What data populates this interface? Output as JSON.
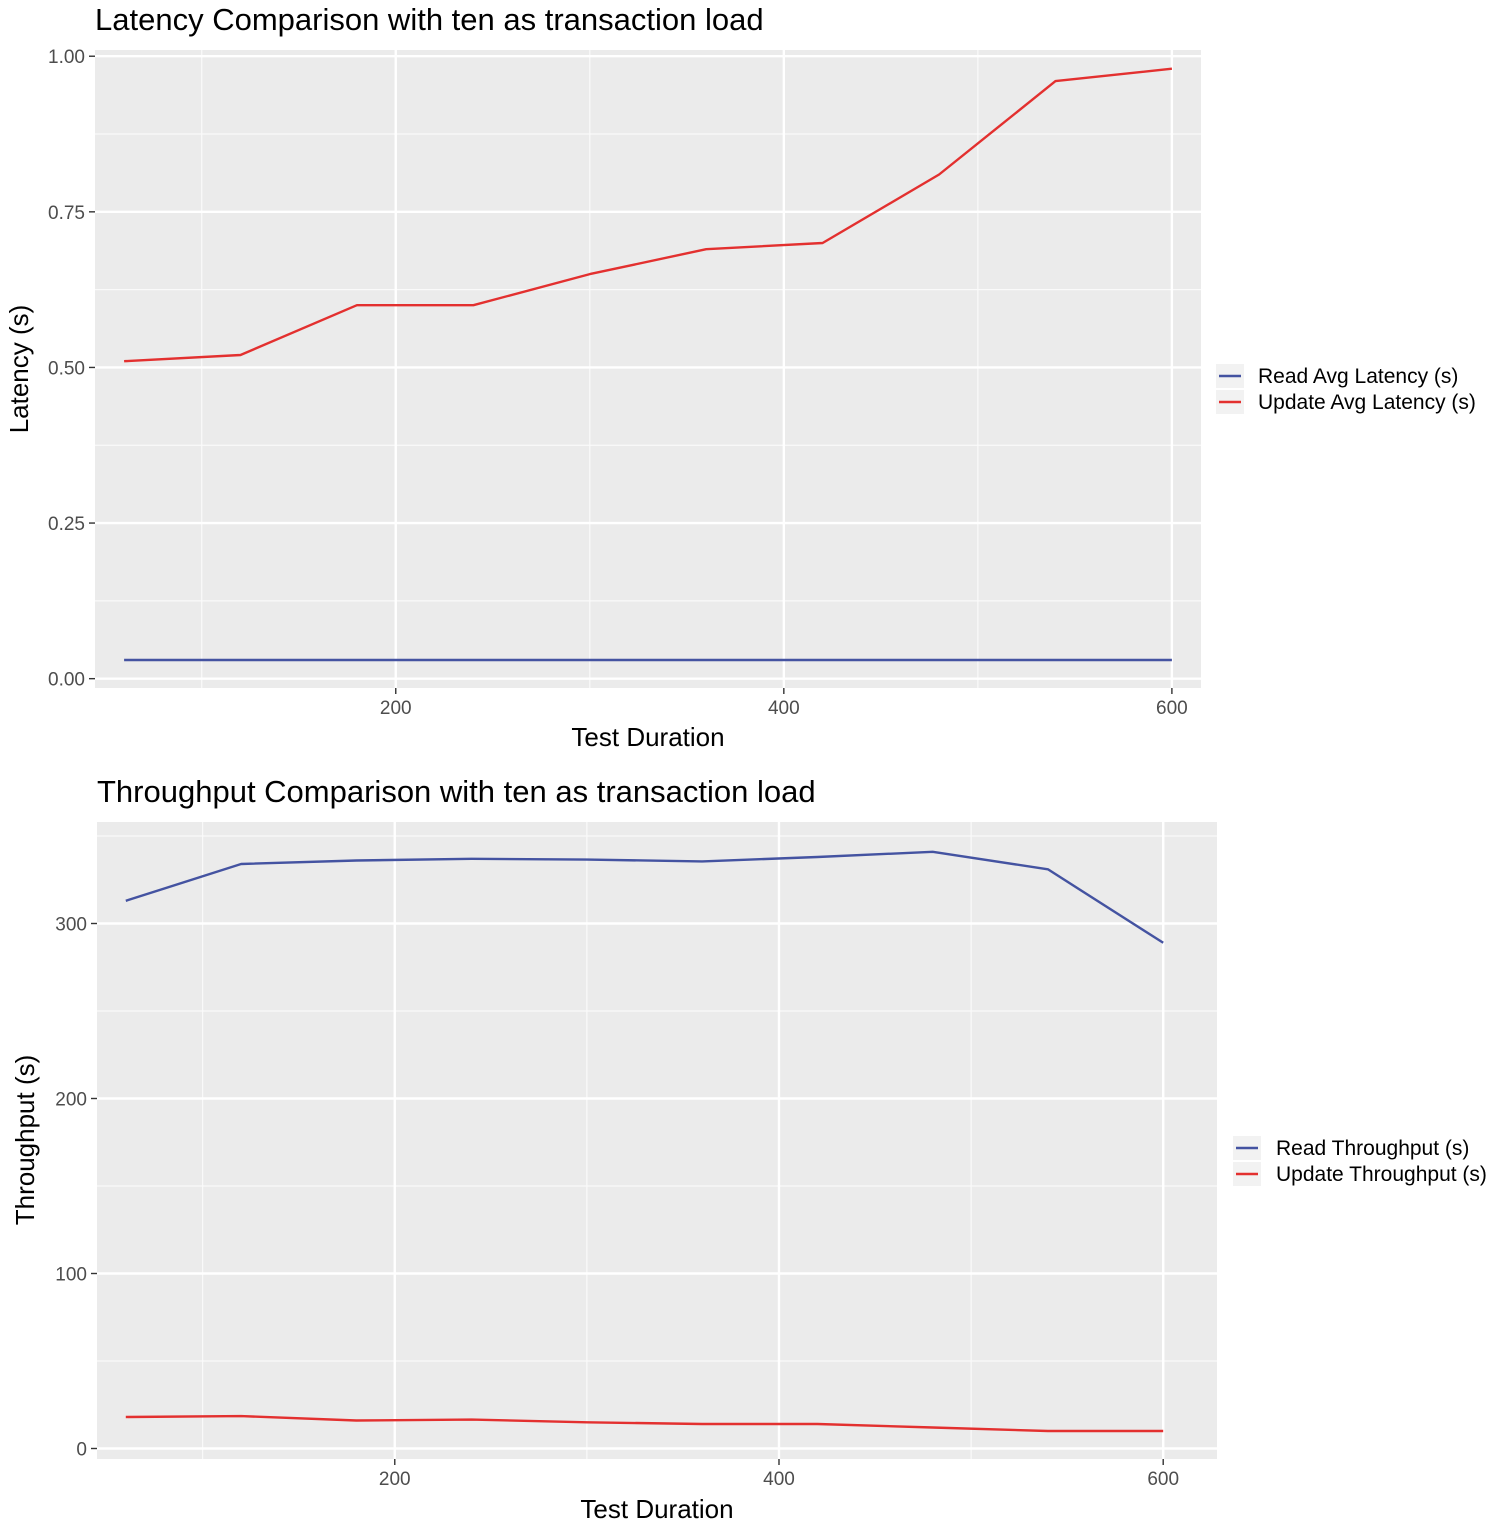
{
  "chart_data": [
    {
      "type": "line",
      "title": "Latency Comparison with ten as transaction load",
      "xlabel": "Test Duration",
      "ylabel": "Latency (s)",
      "xlim": [
        45,
        615
      ],
      "ylim": [
        -0.015,
        1.01
      ],
      "x_ticks": [
        200,
        400,
        600
      ],
      "x_tick_labels": [
        "200",
        "400",
        "600"
      ],
      "x_minor_ticks": [
        100,
        300,
        500
      ],
      "y_ticks": [
        0,
        0.25,
        0.5,
        0.75,
        1.0
      ],
      "y_tick_labels": [
        "0.00",
        "0.25",
        "0.50",
        "0.75",
        "1.00"
      ],
      "y_minor_ticks": [
        0.125,
        0.375,
        0.625,
        0.875
      ],
      "grid": true,
      "legend": "right",
      "x": [
        60,
        120,
        180,
        240,
        300,
        360,
        420,
        480,
        540,
        600
      ],
      "series": [
        {
          "name": "Read Avg Latency (s)",
          "color": "#4453a1",
          "values": [
            0.03,
            0.03,
            0.03,
            0.03,
            0.03,
            0.03,
            0.03,
            0.03,
            0.03,
            0.03
          ]
        },
        {
          "name": "Update Avg Latency (s)",
          "color": "#e3302f",
          "values": [
            0.51,
            0.52,
            0.6,
            0.6,
            0.65,
            0.69,
            0.7,
            0.81,
            0.96,
            0.98
          ]
        }
      ]
    },
    {
      "type": "line",
      "title": "Throughput Comparison with ten as transaction load",
      "xlabel": "Test Duration",
      "ylabel": "Throughput (s)",
      "xlim": [
        45,
        628
      ],
      "ylim": [
        -6,
        358
      ],
      "x_ticks": [
        200,
        400,
        600
      ],
      "x_tick_labels": [
        "200",
        "400",
        "600"
      ],
      "x_minor_ticks": [
        100,
        300,
        500
      ],
      "y_ticks": [
        0,
        100,
        200,
        300
      ],
      "y_tick_labels": [
        "0",
        "100",
        "200",
        "300"
      ],
      "y_minor_ticks": [
        50,
        150,
        250,
        350
      ],
      "grid": true,
      "legend": "right",
      "x": [
        60,
        120,
        180,
        240,
        300,
        360,
        420,
        480,
        540,
        600
      ],
      "series": [
        {
          "name": "Read Throughput (s)",
          "color": "#4453a1",
          "values": [
            313,
            334,
            336,
            337,
            336.5,
            335.5,
            338,
            341,
            331,
            289
          ]
        },
        {
          "name": "Update Throughput (s)",
          "color": "#e3302f",
          "values": [
            18,
            18.5,
            16,
            16.5,
            15,
            14,
            14,
            12,
            10,
            10
          ]
        }
      ]
    }
  ]
}
